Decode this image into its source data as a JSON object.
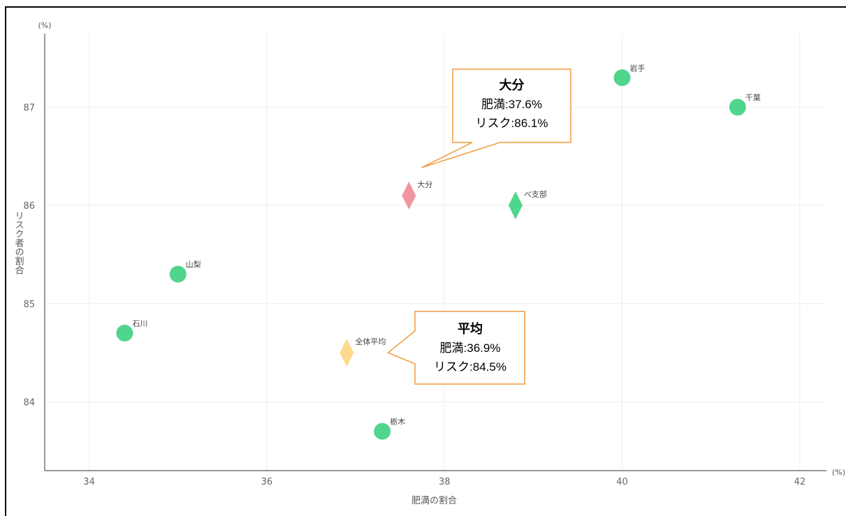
{
  "chart_data": {
    "type": "scatter",
    "xlabel": "肥満の割合",
    "ylabel": "リスク者の割合",
    "x_unit": "(%)",
    "y_unit": "(%)",
    "xlim": [
      33.5,
      42.3
    ],
    "ylim": [
      83.3,
      87.75
    ],
    "x_ticks": [
      34,
      36,
      38,
      40,
      42
    ],
    "y_ticks": [
      84,
      85,
      86,
      87
    ],
    "grid": true,
    "points": [
      {
        "label": "岩手",
        "x": 40.0,
        "y": 87.3,
        "shape": "circle",
        "color": "#3dd07f"
      },
      {
        "label": "千葉",
        "x": 41.3,
        "y": 87.0,
        "shape": "circle",
        "color": "#3dd07f"
      },
      {
        "label": "大分",
        "x": 37.6,
        "y": 86.1,
        "shape": "diamond",
        "color": "#f08a96"
      },
      {
        "label": "べ支部",
        "x": 38.8,
        "y": 86.0,
        "shape": "diamond",
        "color": "#3dd07f"
      },
      {
        "label": "山梨",
        "x": 35.0,
        "y": 85.3,
        "shape": "circle",
        "color": "#3dd07f"
      },
      {
        "label": "石川",
        "x": 34.4,
        "y": 84.7,
        "shape": "circle",
        "color": "#3dd07f"
      },
      {
        "label": "全体平均",
        "x": 36.9,
        "y": 84.5,
        "shape": "diamond",
        "color": "#fcd57e"
      },
      {
        "label": "栃木",
        "x": 37.3,
        "y": 83.7,
        "shape": "circle",
        "color": "#3dd07f"
      }
    ],
    "annotations": [
      {
        "id": "oita",
        "title": "大分",
        "line1": "肥満:37.6%",
        "line2": "リスク:86.1%"
      },
      {
        "id": "avg",
        "title": "平均",
        "line1": "肥満:36.9%",
        "line2": "リスク:84.5%"
      }
    ]
  }
}
